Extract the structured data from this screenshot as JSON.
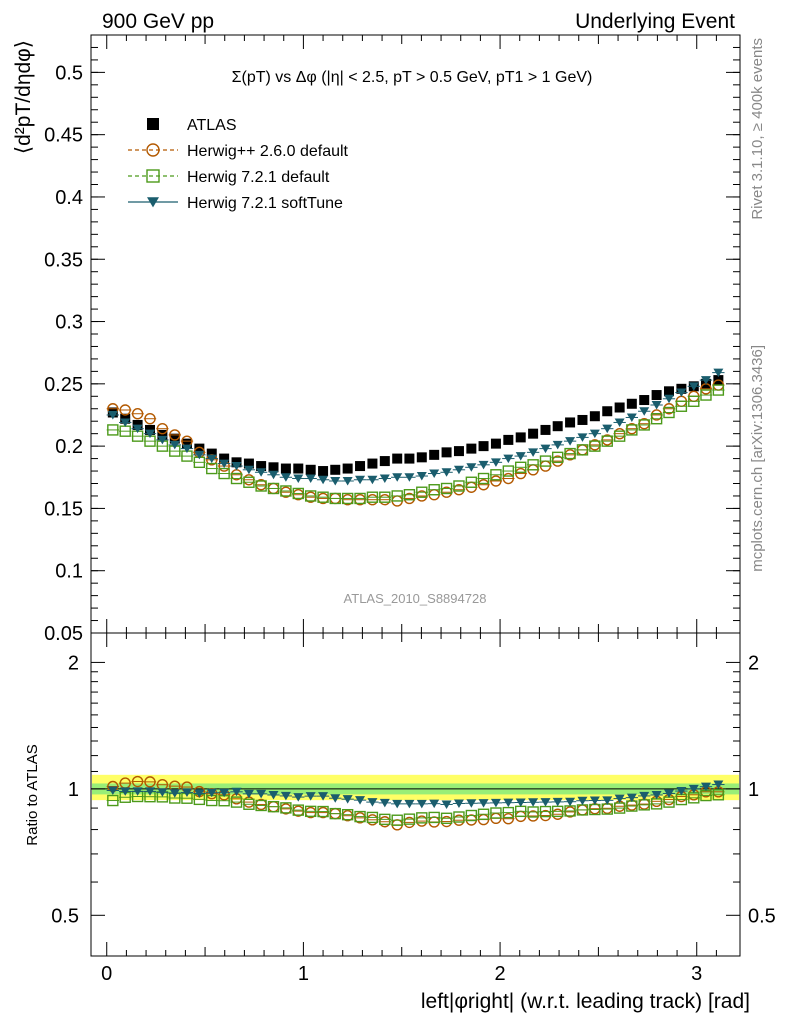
{
  "header": {
    "left": "900 GeV pp",
    "right": "Underlying Event"
  },
  "plot_title": "Σ(pT) vs Δφ (|η| < 2.5, pT > 0.5 GeV, pT1 > 1 GeV)",
  "side_labels": {
    "rivet": "Rivet 3.1.10, ≥ 400k events",
    "mcplots": "mcplots.cern.ch [arXiv:1306.3436]"
  },
  "watermark": "ATLAS_2010_S8894728",
  "colors": {
    "atlas": "#000000",
    "herwigpp": "#b35900",
    "herwig721": "#4c9a1a",
    "softtune": "#1a5d6d",
    "band_outer": "#ffff66",
    "band_inner": "#99ee77"
  },
  "chart_data": [
    {
      "type": "scatter",
      "name": "main",
      "ylabel": "⟨d²pT/dηdφ⟩",
      "xlim": [
        -0.08,
        3.22
      ],
      "ylim": [
        0.05,
        0.53
      ],
      "yticks": [
        "0.05",
        "0.1",
        "0.15",
        "0.2",
        "0.25",
        "0.3",
        "0.35",
        "0.4",
        "0.45",
        "0.5"
      ],
      "legend_position": "top-left",
      "series": [
        {
          "name": "ATLAS",
          "marker": "filled-square",
          "x": [
            0.031,
            0.094,
            0.157,
            0.22,
            0.283,
            0.346,
            0.408,
            0.471,
            0.534,
            0.597,
            0.66,
            0.723,
            0.785,
            0.848,
            0.911,
            0.974,
            1.037,
            1.1,
            1.162,
            1.225,
            1.288,
            1.351,
            1.414,
            1.477,
            1.539,
            1.602,
            1.665,
            1.728,
            1.791,
            1.854,
            1.916,
            1.979,
            2.042,
            2.105,
            2.168,
            2.231,
            2.293,
            2.356,
            2.419,
            2.482,
            2.545,
            2.608,
            2.67,
            2.733,
            2.796,
            2.859,
            2.922,
            2.985,
            3.047,
            3.11
          ],
          "values": [
            0.227,
            0.222,
            0.217,
            0.213,
            0.209,
            0.206,
            0.202,
            0.198,
            0.194,
            0.19,
            0.187,
            0.186,
            0.184,
            0.183,
            0.182,
            0.182,
            0.181,
            0.18,
            0.181,
            0.182,
            0.184,
            0.186,
            0.188,
            0.19,
            0.19,
            0.191,
            0.193,
            0.195,
            0.196,
            0.198,
            0.2,
            0.202,
            0.205,
            0.207,
            0.21,
            0.213,
            0.216,
            0.219,
            0.221,
            0.224,
            0.228,
            0.231,
            0.234,
            0.237,
            0.241,
            0.244,
            0.246,
            0.248,
            0.25,
            0.253
          ]
        },
        {
          "name": "Herwig++ 2.6.0 default",
          "marker": "open-circle",
          "x": [
            0.031,
            0.094,
            0.157,
            0.22,
            0.283,
            0.346,
            0.408,
            0.471,
            0.534,
            0.597,
            0.66,
            0.723,
            0.785,
            0.848,
            0.911,
            0.974,
            1.037,
            1.1,
            1.162,
            1.225,
            1.288,
            1.351,
            1.414,
            1.477,
            1.539,
            1.602,
            1.665,
            1.728,
            1.791,
            1.854,
            1.916,
            1.979,
            2.042,
            2.105,
            2.168,
            2.231,
            2.293,
            2.356,
            2.419,
            2.482,
            2.545,
            2.608,
            2.67,
            2.733,
            2.796,
            2.859,
            2.922,
            2.985,
            3.047,
            3.11
          ],
          "values": [
            0.23,
            0.229,
            0.226,
            0.222,
            0.214,
            0.209,
            0.204,
            0.195,
            0.189,
            0.184,
            0.177,
            0.173,
            0.169,
            0.166,
            0.163,
            0.161,
            0.159,
            0.158,
            0.158,
            0.157,
            0.157,
            0.157,
            0.157,
            0.156,
            0.158,
            0.16,
            0.161,
            0.163,
            0.165,
            0.167,
            0.169,
            0.172,
            0.174,
            0.178,
            0.181,
            0.184,
            0.188,
            0.193,
            0.197,
            0.201,
            0.205,
            0.21,
            0.214,
            0.218,
            0.225,
            0.23,
            0.236,
            0.24,
            0.246,
            0.249
          ]
        },
        {
          "name": "Herwig 7.2.1 default",
          "marker": "open-square",
          "x": [
            0.031,
            0.094,
            0.157,
            0.22,
            0.283,
            0.346,
            0.408,
            0.471,
            0.534,
            0.597,
            0.66,
            0.723,
            0.785,
            0.848,
            0.911,
            0.974,
            1.037,
            1.1,
            1.162,
            1.225,
            1.288,
            1.351,
            1.414,
            1.477,
            1.539,
            1.602,
            1.665,
            1.728,
            1.791,
            1.854,
            1.916,
            1.979,
            2.042,
            2.105,
            2.168,
            2.231,
            2.293,
            2.356,
            2.419,
            2.482,
            2.545,
            2.608,
            2.67,
            2.733,
            2.796,
            2.859,
            2.922,
            2.985,
            3.047,
            3.11
          ],
          "values": [
            0.213,
            0.212,
            0.208,
            0.204,
            0.2,
            0.196,
            0.192,
            0.187,
            0.182,
            0.178,
            0.174,
            0.171,
            0.168,
            0.166,
            0.164,
            0.162,
            0.16,
            0.159,
            0.158,
            0.158,
            0.158,
            0.159,
            0.159,
            0.16,
            0.161,
            0.163,
            0.165,
            0.166,
            0.168,
            0.171,
            0.174,
            0.177,
            0.18,
            0.183,
            0.185,
            0.188,
            0.191,
            0.194,
            0.197,
            0.2,
            0.204,
            0.208,
            0.213,
            0.217,
            0.222,
            0.227,
            0.232,
            0.236,
            0.241,
            0.245
          ]
        },
        {
          "name": "Herwig 7.2.1 softTune",
          "marker": "filled-triangle-down",
          "x": [
            0.031,
            0.094,
            0.157,
            0.22,
            0.283,
            0.346,
            0.408,
            0.471,
            0.534,
            0.597,
            0.66,
            0.723,
            0.785,
            0.848,
            0.911,
            0.974,
            1.037,
            1.1,
            1.162,
            1.225,
            1.288,
            1.351,
            1.414,
            1.477,
            1.539,
            1.602,
            1.665,
            1.728,
            1.791,
            1.854,
            1.916,
            1.979,
            2.042,
            2.105,
            2.168,
            2.231,
            2.293,
            2.356,
            2.419,
            2.482,
            2.545,
            2.608,
            2.67,
            2.733,
            2.796,
            2.859,
            2.922,
            2.985,
            3.047,
            3.11
          ],
          "values": [
            0.225,
            0.219,
            0.214,
            0.21,
            0.205,
            0.201,
            0.198,
            0.193,
            0.19,
            0.186,
            0.184,
            0.181,
            0.179,
            0.177,
            0.175,
            0.174,
            0.174,
            0.173,
            0.172,
            0.172,
            0.173,
            0.173,
            0.174,
            0.175,
            0.175,
            0.176,
            0.178,
            0.179,
            0.181,
            0.183,
            0.185,
            0.187,
            0.19,
            0.192,
            0.195,
            0.198,
            0.201,
            0.204,
            0.207,
            0.21,
            0.214,
            0.219,
            0.223,
            0.228,
            0.233,
            0.238,
            0.243,
            0.248,
            0.253,
            0.259
          ]
        }
      ]
    },
    {
      "type": "scatter",
      "name": "ratio",
      "xlabel": "left|φright| (w.r.t. leading track) [rad]",
      "ylabel": "Ratio to ATLAS",
      "xlim": [
        -0.08,
        3.22
      ],
      "ylim": [
        0.4,
        2.35
      ],
      "y_scale": "log",
      "xticks": [
        "0",
        "1",
        "2",
        "3"
      ],
      "yticks": [
        "0.5",
        "1",
        "2"
      ],
      "reference_band_outer": [
        0.94,
        1.08
      ],
      "reference_band_inner": [
        0.97,
        1.03
      ],
      "series": [
        {
          "name": "Herwig++ 2.6.0 default",
          "values": [
            1.013,
            1.032,
            1.041,
            1.039,
            1.023,
            1.015,
            1.01,
            0.985,
            0.974,
            0.968,
            0.947,
            0.93,
            0.918,
            0.907,
            0.896,
            0.885,
            0.878,
            0.878,
            0.873,
            0.863,
            0.853,
            0.844,
            0.835,
            0.821,
            0.832,
            0.838,
            0.834,
            0.836,
            0.842,
            0.843,
            0.845,
            0.851,
            0.849,
            0.86,
            0.862,
            0.864,
            0.87,
            0.881,
            0.891,
            0.897,
            0.899,
            0.909,
            0.915,
            0.92,
            0.934,
            0.943,
            0.959,
            0.968,
            0.984,
            0.984
          ]
        },
        {
          "name": "Herwig 7.2.1 default",
          "values": [
            0.938,
            0.955,
            0.959,
            0.958,
            0.957,
            0.951,
            0.95,
            0.944,
            0.938,
            0.937,
            0.93,
            0.919,
            0.913,
            0.907,
            0.901,
            0.89,
            0.884,
            0.883,
            0.873,
            0.868,
            0.859,
            0.855,
            0.846,
            0.842,
            0.847,
            0.853,
            0.855,
            0.851,
            0.857,
            0.864,
            0.87,
            0.876,
            0.878,
            0.884,
            0.881,
            0.883,
            0.884,
            0.886,
            0.891,
            0.893,
            0.895,
            0.9,
            0.91,
            0.916,
            0.921,
            0.93,
            0.943,
            0.952,
            0.964,
            0.968
          ]
        },
        {
          "name": "Herwig 7.2.1 softTune",
          "values": [
            0.991,
            0.986,
            0.986,
            0.986,
            0.981,
            0.976,
            0.98,
            0.975,
            0.979,
            0.979,
            0.984,
            0.973,
            0.973,
            0.967,
            0.962,
            0.956,
            0.961,
            0.961,
            0.95,
            0.945,
            0.94,
            0.93,
            0.926,
            0.921,
            0.921,
            0.921,
            0.922,
            0.918,
            0.923,
            0.924,
            0.925,
            0.926,
            0.927,
            0.928,
            0.929,
            0.93,
            0.931,
            0.932,
            0.937,
            0.938,
            0.939,
            0.948,
            0.953,
            0.962,
            0.967,
            0.975,
            0.988,
            1.0,
            1.012,
            1.024
          ]
        }
      ]
    }
  ]
}
